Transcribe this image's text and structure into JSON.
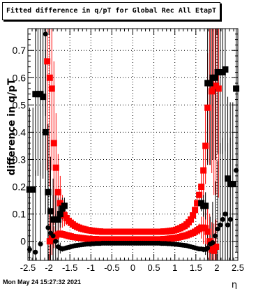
{
  "title": "Fitted difference in q/pT for Global Rec All EtapT",
  "timestamp": "Mon May 24 15:27:32 2021",
  "chart_data": {
    "type": "scatter",
    "title": "Fitted difference in q/pT for Global Rec All EtapT",
    "xlabel": "η",
    "ylabel": "difference in q/pT",
    "xlim": [
      -2.5,
      2.5
    ],
    "ylim": [
      -0.07,
      0.78
    ],
    "xticks": [
      "-2.5",
      "-2",
      "-1.5",
      "-1",
      "-0.5",
      "0",
      "0.5",
      "1",
      "1.5",
      "2",
      "2.5"
    ],
    "yticks": [
      "0",
      "0.1",
      "0.2",
      "0.3",
      "0.4",
      "0.5",
      "0.6",
      "0.7"
    ],
    "grid": true,
    "series": [
      {
        "color": "#ff0000",
        "marker": "square",
        "x": [
          -2.04,
          -1.98,
          -1.93,
          -1.88,
          -1.83,
          -1.78,
          -1.73,
          -1.68,
          -1.63,
          -1.58,
          -1.53,
          -1.48,
          -1.43,
          -1.38,
          -1.33,
          -1.28,
          -1.23,
          -1.18,
          -1.13,
          -1.08,
          -1.03,
          -0.98,
          -0.93,
          -0.88,
          -0.83,
          -0.78,
          -0.73,
          -0.68,
          -0.63,
          -0.58,
          -0.53,
          -0.48,
          -0.43,
          -0.38,
          -0.33,
          -0.28,
          -0.23,
          -0.18,
          -0.13,
          -0.08,
          -0.03,
          0.03,
          0.08,
          0.13,
          0.18,
          0.23,
          0.28,
          0.33,
          0.38,
          0.43,
          0.48,
          0.53,
          0.58,
          0.63,
          0.68,
          0.73,
          0.78,
          0.83,
          0.88,
          0.93,
          0.98,
          1.03,
          1.08,
          1.13,
          1.18,
          1.23,
          1.28,
          1.33,
          1.38,
          1.43,
          1.48,
          1.53,
          1.58,
          1.63,
          1.68,
          1.73,
          1.78,
          1.83,
          1.88,
          1.93,
          1.98,
          2.04
        ],
        "y": [
          0.66,
          0.6,
          0.56,
          0.36,
          0.27,
          0.18,
          0.14,
          0.11,
          0.095,
          0.085,
          0.075,
          0.068,
          0.062,
          0.057,
          0.053,
          0.05,
          0.047,
          0.045,
          0.043,
          0.041,
          0.04,
          0.039,
          0.038,
          0.037,
          0.036,
          0.036,
          0.035,
          0.035,
          0.035,
          0.035,
          0.035,
          0.035,
          0.035,
          0.035,
          0.035,
          0.035,
          0.035,
          0.035,
          0.035,
          0.035,
          0.035,
          0.035,
          0.035,
          0.035,
          0.035,
          0.035,
          0.035,
          0.035,
          0.035,
          0.035,
          0.035,
          0.035,
          0.035,
          0.035,
          0.035,
          0.036,
          0.036,
          0.037,
          0.038,
          0.039,
          0.04,
          0.042,
          0.045,
          0.048,
          0.052,
          0.056,
          0.062,
          0.07,
          0.08,
          0.095,
          0.115,
          0.14,
          0.17,
          0.2,
          0.26,
          0.35,
          0.49,
          0.58,
          0.55,
          0.57,
          0.57,
          0.56
        ],
        "yerr": [
          0.4,
          0.4,
          0.3,
          0.3,
          0.2,
          0.14,
          0.1,
          0.06,
          0.04,
          0.025,
          0.015,
          0.01,
          0.008,
          0.006,
          0.005,
          0.004,
          0.003,
          0.003,
          0.003,
          0.002,
          0.002,
          0.002,
          0.002,
          0.002,
          0.002,
          0.002,
          0.002,
          0.002,
          0.002,
          0.002,
          0.002,
          0.002,
          0.002,
          0.002,
          0.002,
          0.002,
          0.002,
          0.002,
          0.002,
          0.002,
          0.002,
          0.002,
          0.002,
          0.002,
          0.002,
          0.002,
          0.002,
          0.002,
          0.002,
          0.002,
          0.002,
          0.002,
          0.002,
          0.002,
          0.002,
          0.002,
          0.002,
          0.002,
          0.002,
          0.002,
          0.002,
          0.002,
          0.003,
          0.003,
          0.003,
          0.004,
          0.005,
          0.006,
          0.008,
          0.01,
          0.015,
          0.025,
          0.04,
          0.06,
          0.1,
          0.14,
          0.2,
          0.3,
          0.3,
          0.4,
          0.4,
          0.4
        ]
      },
      {
        "color": "#ff0000",
        "marker": "square",
        "x": [
          -1.98,
          -1.93,
          -1.88,
          -1.83,
          -1.78,
          -1.73,
          -1.68,
          -1.63,
          -1.58,
          -1.53,
          -1.48,
          -1.43,
          -1.38,
          -1.33,
          -1.28,
          -1.23,
          -1.18,
          -1.13,
          -1.08,
          -1.03,
          -0.98,
          -0.93,
          -0.88,
          -0.83,
          -0.78,
          -0.73,
          -0.68,
          -0.63,
          -0.58,
          -0.53,
          -0.48,
          -0.43,
          -0.38,
          -0.33,
          -0.28,
          -0.23,
          -0.18,
          -0.13,
          -0.08,
          -0.03,
          0.03,
          0.08,
          0.13,
          0.18,
          0.23,
          0.28,
          0.33,
          0.38,
          0.43,
          0.48,
          0.53,
          0.58,
          0.63,
          0.68,
          0.73,
          0.78,
          0.83,
          0.88,
          0.93,
          0.98,
          1.03,
          1.08,
          1.13,
          1.18,
          1.23,
          1.28,
          1.33,
          1.38,
          1.43,
          1.48,
          1.53,
          1.58,
          1.63,
          1.68,
          1.73,
          1.78,
          1.83,
          1.88,
          1.93,
          1.98
        ],
        "y": [
          0.0,
          0.01,
          0.015,
          0.02,
          0.025,
          0.028,
          0.026,
          0.024,
          0.022,
          0.02,
          0.018,
          0.016,
          0.015,
          0.014,
          0.013,
          0.012,
          0.011,
          0.01,
          0.009,
          0.009,
          0.008,
          0.008,
          0.008,
          0.007,
          0.007,
          0.007,
          0.007,
          0.007,
          0.007,
          0.007,
          0.007,
          0.007,
          0.007,
          0.007,
          0.007,
          0.007,
          0.007,
          0.007,
          0.007,
          0.007,
          0.007,
          0.007,
          0.007,
          0.007,
          0.007,
          0.007,
          0.007,
          0.007,
          0.007,
          0.007,
          0.007,
          0.007,
          0.007,
          0.007,
          0.008,
          0.008,
          0.009,
          0.01,
          0.011,
          0.012,
          0.013,
          0.014,
          0.016,
          0.018,
          0.02,
          0.022,
          0.025,
          0.028,
          0.031,
          0.035,
          0.04,
          0.045,
          0.05,
          0.05,
          0.048,
          0.035,
          0.0,
          -0.03,
          -0.035,
          -0.02
        ],
        "yerr": [
          0.1,
          0.06,
          0.04,
          0.02,
          0.01,
          0.006,
          0.004,
          0.003,
          0.002,
          0.002,
          0.002,
          0.002,
          0.002,
          0.002,
          0.002,
          0.002,
          0.002,
          0.002,
          0.002,
          0.002,
          0.002,
          0.002,
          0.002,
          0.002,
          0.002,
          0.002,
          0.002,
          0.002,
          0.002,
          0.002,
          0.002,
          0.002,
          0.002,
          0.002,
          0.002,
          0.002,
          0.002,
          0.002,
          0.002,
          0.002,
          0.002,
          0.002,
          0.002,
          0.002,
          0.002,
          0.002,
          0.002,
          0.002,
          0.002,
          0.002,
          0.002,
          0.002,
          0.002,
          0.002,
          0.002,
          0.002,
          0.002,
          0.002,
          0.002,
          0.002,
          0.002,
          0.002,
          0.002,
          0.002,
          0.002,
          0.002,
          0.002,
          0.003,
          0.004,
          0.006,
          0.01,
          0.02,
          0.04,
          0.06,
          0.08,
          0.1,
          0.1,
          0.1,
          0.1,
          0.1
        ]
      },
      {
        "color": "#000000",
        "marker": "square",
        "x": [
          -2.46,
          -2.38,
          -2.32,
          -2.26,
          -2.2,
          -2.14,
          -2.08,
          -2.02,
          -1.96,
          -1.9,
          -1.84,
          -1.78,
          -1.73,
          -1.68,
          -1.63
        ],
        "y": [
          0.19,
          0.19,
          0.54,
          0.54,
          0.54,
          0.53,
          0.4,
          0.18,
          0.11,
          0.08,
          0.08,
          0.08,
          0.1,
          0.12,
          0.13
        ],
        "yerr": [
          0.3,
          0.3,
          0.3,
          0.3,
          0.3,
          0.3,
          0.3,
          0.25,
          0.2,
          0.15,
          0.1,
          0.08,
          0.05,
          0.04,
          0.03
        ]
      },
      {
        "color": "#000000",
        "marker": "square",
        "x": [
          1.63,
          1.68,
          1.73,
          1.78,
          1.84,
          1.9,
          1.96,
          2.02,
          2.08,
          2.14,
          2.2,
          2.26,
          2.32,
          2.38,
          2.46
        ],
        "y": [
          0.14,
          0.13,
          0.13,
          0.58,
          0.58,
          0.6,
          0.6,
          0.62,
          0.62,
          0.62,
          0.63,
          0.23,
          0.21,
          0.21,
          0.56
        ],
        "yerr": [
          0.03,
          0.04,
          0.05,
          0.3,
          0.3,
          0.3,
          0.3,
          0.3,
          0.3,
          0.3,
          0.3,
          0.3,
          0.3,
          0.3,
          0.3
        ]
      },
      {
        "color": "#000000",
        "marker": "circle",
        "x": [
          -2.46,
          -2.32,
          -2.2,
          -2.08,
          -2.02,
          -1.96,
          -1.9,
          -1.84,
          -1.78,
          -1.73,
          -1.68,
          -1.63,
          -1.58,
          -1.53,
          -1.48,
          -1.43,
          -1.38,
          -1.33,
          -1.28,
          -1.23,
          -1.18,
          -1.13,
          -1.08,
          -1.03,
          -0.98,
          -0.93,
          -0.88,
          -0.83,
          -0.78,
          -0.73,
          -0.68,
          -0.63,
          -0.58,
          -0.53,
          -0.48,
          -0.43,
          -0.38,
          -0.33,
          -0.28,
          -0.23,
          -0.18,
          -0.13,
          -0.08,
          -0.03,
          0.03,
          0.08,
          0.13,
          0.18,
          0.23,
          0.28,
          0.33,
          0.38,
          0.43,
          0.48,
          0.53,
          0.58,
          0.63,
          0.68,
          0.73,
          0.78,
          0.83,
          0.88,
          0.93,
          0.98,
          1.03,
          1.08,
          1.13,
          1.18,
          1.23,
          1.28,
          1.33,
          1.38,
          1.43,
          1.48,
          1.53,
          1.58,
          1.63,
          1.68,
          1.73,
          1.78,
          1.84,
          1.9,
          1.96,
          2.02,
          2.08,
          2.14,
          2.2,
          2.26,
          2.32,
          2.46
        ],
        "y": [
          -0.03,
          -0.04,
          -0.01,
          0.76,
          0.05,
          0.03,
          0.02,
          0.0,
          -0.02,
          -0.025,
          -0.028,
          -0.026,
          -0.024,
          -0.022,
          -0.02,
          -0.018,
          -0.016,
          -0.015,
          -0.014,
          -0.013,
          -0.012,
          -0.011,
          -0.01,
          -0.01,
          -0.009,
          -0.009,
          -0.008,
          -0.008,
          -0.008,
          -0.007,
          -0.007,
          -0.007,
          -0.007,
          -0.007,
          -0.007,
          -0.007,
          -0.007,
          -0.007,
          -0.007,
          -0.007,
          -0.007,
          -0.007,
          -0.007,
          -0.007,
          -0.007,
          -0.007,
          -0.007,
          -0.007,
          -0.007,
          -0.007,
          -0.007,
          -0.007,
          -0.007,
          -0.007,
          -0.007,
          -0.007,
          -0.007,
          -0.008,
          -0.008,
          -0.008,
          -0.009,
          -0.009,
          -0.01,
          -0.01,
          -0.011,
          -0.012,
          -0.013,
          -0.014,
          -0.015,
          -0.016,
          -0.018,
          -0.02,
          -0.022,
          -0.024,
          -0.026,
          -0.028,
          -0.028,
          -0.03,
          -0.03,
          -0.025,
          -0.01,
          -0.005,
          0.02,
          0.045,
          0.06,
          0.08,
          0.1,
          0.06,
          0.08,
          0.26
        ],
        "yerr": [
          0.3,
          0.3,
          0.3,
          0.3,
          0.25,
          0.2,
          0.15,
          0.1,
          0.05,
          0.02,
          0.01,
          0.006,
          0.004,
          0.003,
          0.002,
          0.002,
          0.002,
          0.002,
          0.002,
          0.002,
          0.002,
          0.002,
          0.002,
          0.002,
          0.002,
          0.002,
          0.002,
          0.002,
          0.002,
          0.002,
          0.002,
          0.002,
          0.002,
          0.002,
          0.002,
          0.002,
          0.002,
          0.002,
          0.002,
          0.002,
          0.002,
          0.002,
          0.002,
          0.002,
          0.002,
          0.002,
          0.002,
          0.002,
          0.002,
          0.002,
          0.002,
          0.002,
          0.002,
          0.002,
          0.002,
          0.002,
          0.002,
          0.002,
          0.002,
          0.002,
          0.002,
          0.002,
          0.002,
          0.002,
          0.002,
          0.002,
          0.002,
          0.002,
          0.002,
          0.002,
          0.002,
          0.002,
          0.002,
          0.002,
          0.003,
          0.004,
          0.006,
          0.01,
          0.02,
          0.05,
          0.1,
          0.15,
          0.2,
          0.25,
          0.3,
          0.3,
          0.3,
          0.3,
          0.3,
          0.3
        ]
      }
    ]
  }
}
